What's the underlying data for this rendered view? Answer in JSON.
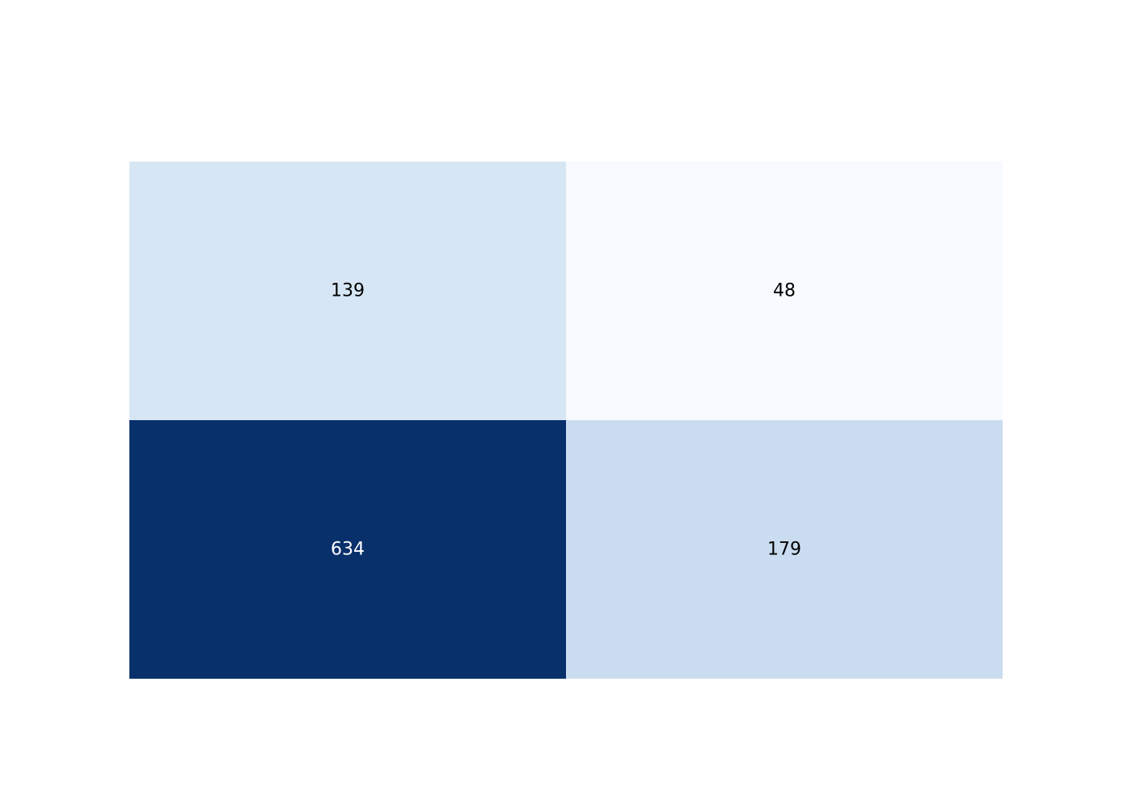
{
  "chart_data": {
    "type": "heatmap",
    "title": "",
    "xlabel": "",
    "ylabel": "",
    "rows": 2,
    "columns": 2,
    "z": [
      [
        139,
        48
      ],
      [
        634,
        179
      ]
    ],
    "cell_labels": [
      [
        "139",
        "48"
      ],
      [
        "634",
        "179"
      ]
    ],
    "colorscale": "Blues",
    "colors": [
      [
        "#d6e6f4",
        "#f7fbff"
      ],
      [
        "#08306b",
        "#cadcf0"
      ]
    ],
    "label_colors": [
      [
        "#000000",
        "#000000"
      ],
      [
        "#ffffff",
        "#000000"
      ]
    ],
    "show_axes": false,
    "show_colorbar": false,
    "grid": false
  }
}
